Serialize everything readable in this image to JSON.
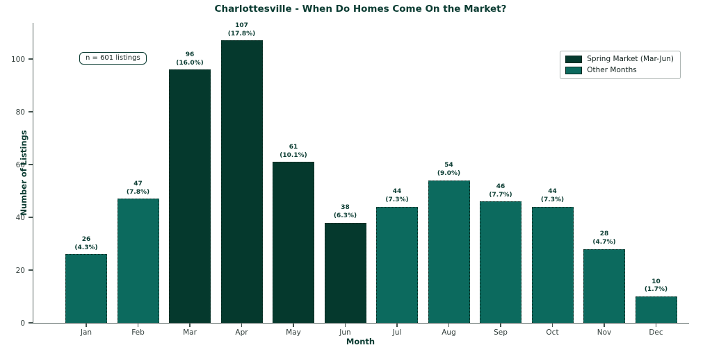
{
  "chart_data": {
    "type": "bar",
    "title": "Charlottesville - When Do Homes Come On the Market?",
    "xlabel": "Month",
    "ylabel": "Number of Listings",
    "categories": [
      "Jan",
      "Feb",
      "Mar",
      "Apr",
      "May",
      "Jun",
      "Jul",
      "Aug",
      "Sep",
      "Oct",
      "Nov",
      "Dec"
    ],
    "values": [
      26,
      47,
      96,
      107,
      61,
      38,
      44,
      54,
      46,
      44,
      28,
      10
    ],
    "percent_labels": [
      "(4.3%)",
      "(7.8%)",
      "(16.0%)",
      "(17.8%)",
      "(10.1%)",
      "(6.3%)",
      "(7.3%)",
      "(9.0%)",
      "(7.7%)",
      "(7.3%)",
      "(4.7%)",
      "(1.7%)"
    ],
    "groups": [
      "other",
      "other",
      "spring",
      "spring",
      "spring",
      "spring",
      "other",
      "other",
      "other",
      "other",
      "other",
      "other"
    ],
    "colors": {
      "spring": "#05392d",
      "other": "#0c6a5e"
    },
    "yticks": [
      0,
      20,
      40,
      60,
      80,
      100
    ],
    "ylim": [
      0,
      114
    ],
    "grid": false,
    "annotation": "n = 601 listings",
    "legend": {
      "position": "upper right",
      "entries": [
        {
          "label": "Spring Market (Mar-Jun)",
          "color_key": "spring"
        },
        {
          "label": "Other Months",
          "color_key": "other"
        }
      ]
    }
  }
}
